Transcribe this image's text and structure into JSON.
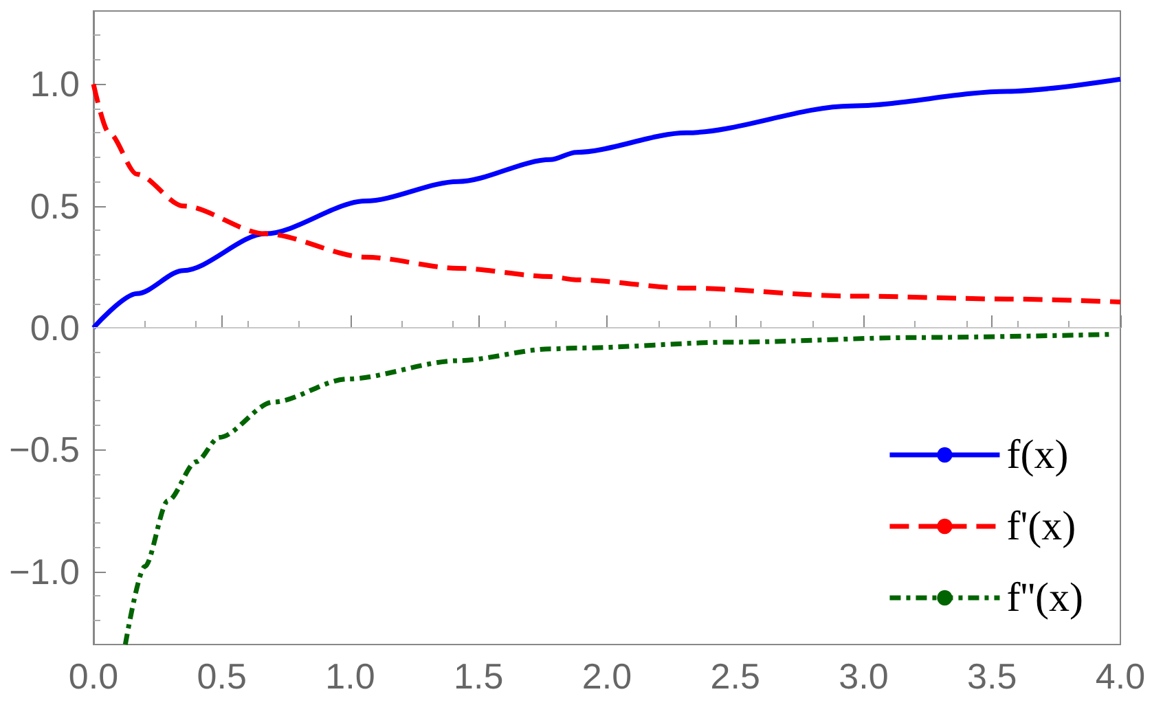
{
  "chart_data": {
    "type": "line",
    "xlim": [
      0,
      4
    ],
    "ylim": [
      -1.3,
      1.3
    ],
    "xticks": [
      {
        "value": 0,
        "label": "0.0"
      },
      {
        "value": 0.5,
        "label": "0.5"
      },
      {
        "value": 1,
        "label": "1.0"
      },
      {
        "value": 1.5,
        "label": "1.5"
      },
      {
        "value": 2,
        "label": "2.0"
      },
      {
        "value": 2.5,
        "label": "2.5"
      },
      {
        "value": 3,
        "label": "3.0"
      },
      {
        "value": 3.5,
        "label": "3.5"
      },
      {
        "value": 4,
        "label": "4.0"
      }
    ],
    "yticks": [
      {
        "value": -1,
        "label": "−1.0"
      },
      {
        "value": -0.5,
        "label": "−0.5"
      },
      {
        "value": 0,
        "label": "0.0"
      },
      {
        "value": 0.5,
        "label": "0.5"
      },
      {
        "value": 1,
        "label": "1.0"
      }
    ],
    "grid": false,
    "legend": "bottom right",
    "marker": "none",
    "ref_lines": [
      {
        "axis": "y",
        "value": 0,
        "color": "#c8c8c8"
      }
    ],
    "series": [
      {
        "name": "f(x)",
        "color": "#0000ff",
        "line_style": "solid",
        "x": [
          0,
          0.17,
          0.35,
          0.67,
          1.06,
          1.42,
          1.78,
          1.88,
          2.31,
          2.95,
          3.56,
          4
        ],
        "values": [
          0,
          0.14,
          0.235,
          0.386,
          0.52,
          0.6,
          0.69,
          0.72,
          0.8,
          0.91,
          0.97,
          1.02
        ]
      },
      {
        "name": "f'(x)",
        "color": "#ff0000",
        "line_style": "dashed",
        "x": [
          0,
          0.06,
          0.17,
          0.35,
          0.67,
          1.06,
          1.42,
          1.78,
          1.88,
          2.31,
          2.95,
          3.56,
          4
        ],
        "values": [
          1,
          0.8,
          0.63,
          0.5,
          0.386,
          0.29,
          0.244,
          0.21,
          0.197,
          0.163,
          0.13,
          0.118,
          0.106
        ]
      },
      {
        "name": "f''(x)",
        "color": "#006400",
        "line_style": "dotted",
        "x": [
          0.124,
          0.2,
          0.29,
          0.4,
          0.49,
          0.7,
          0.99,
          1.42,
          1.78,
          1.88,
          2.49,
          3.21,
          3.97
        ],
        "values": [
          -1.3,
          -0.98,
          -0.71,
          -0.55,
          -0.45,
          -0.305,
          -0.21,
          -0.135,
          -0.087,
          -0.083,
          -0.059,
          -0.04,
          -0.027
        ]
      }
    ]
  }
}
